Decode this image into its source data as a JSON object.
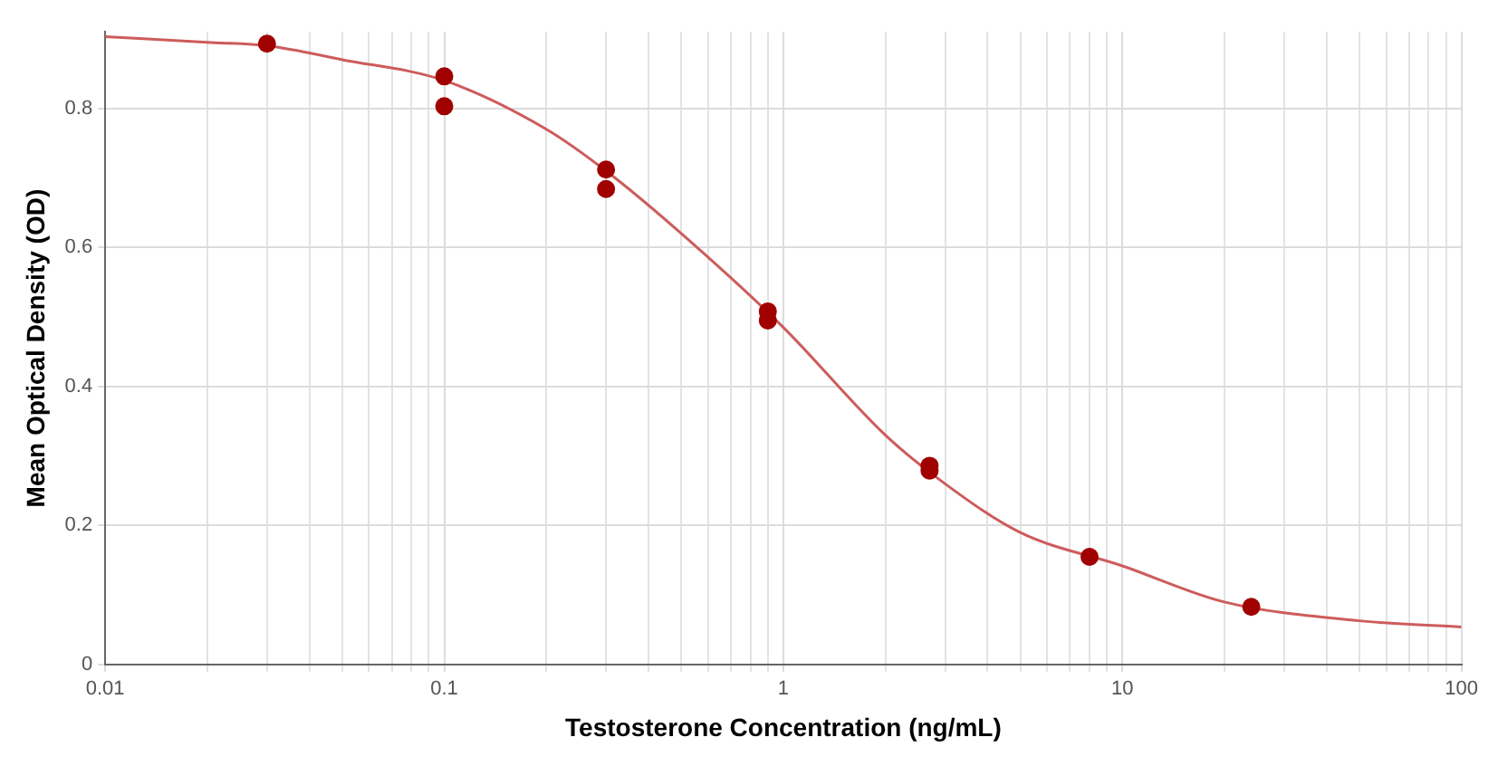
{
  "chart_data": {
    "type": "scatter",
    "xlabel": "Testosterone Concentration (ng/mL)",
    "ylabel": "Mean Optical Density (OD)",
    "log": "x",
    "grid": true,
    "legend": false,
    "xlim": [
      0.01,
      100
    ],
    "ylim": [
      0,
      0.91
    ],
    "xticks": [
      0.01,
      {
        "value": 0.02,
        "label": null
      },
      {
        "value": 0.03,
        "label": null
      },
      {
        "value": 0.04,
        "label": null
      },
      {
        "value": 0.05,
        "label": null
      },
      {
        "value": 0.06,
        "label": null
      },
      {
        "value": 0.07,
        "label": null
      },
      {
        "value": 0.08,
        "label": null
      },
      {
        "value": 0.09,
        "label": null
      },
      0.1,
      {
        "value": 0.2,
        "label": null
      },
      {
        "value": 0.3,
        "label": null
      },
      {
        "value": 0.4,
        "label": null
      },
      {
        "value": 0.5,
        "label": null
      },
      {
        "value": 0.6,
        "label": null
      },
      {
        "value": 0.7,
        "label": null
      },
      {
        "value": 0.8,
        "label": null
      },
      {
        "value": 0.9,
        "label": null
      },
      1,
      {
        "value": 2,
        "label": null
      },
      {
        "value": 3,
        "label": null
      },
      {
        "value": 4,
        "label": null
      },
      {
        "value": 5,
        "label": null
      },
      {
        "value": 6,
        "label": null
      },
      {
        "value": 7,
        "label": null
      },
      {
        "value": 8,
        "label": null
      },
      {
        "value": 9,
        "label": null
      },
      10,
      {
        "value": 20,
        "label": null
      },
      {
        "value": 30,
        "label": null
      },
      {
        "value": 40,
        "label": null
      },
      {
        "value": 50,
        "label": null
      },
      {
        "value": 60,
        "label": null
      },
      {
        "value": 70,
        "label": null
      },
      {
        "value": 80,
        "label": null
      },
      {
        "value": 90,
        "label": null
      },
      100
    ],
    "yticks": [
      0,
      0.2,
      0.4,
      0.6,
      0.8
    ],
    "series": [
      {
        "type": "line",
        "color": "#cd5c5c",
        "marker": "none",
        "x": [
          0.01,
          0.02,
          0.03,
          0.05,
          0.1,
          0.2,
          0.3,
          0.5,
          1,
          2,
          3,
          5,
          10,
          20,
          50,
          100
        ],
        "values": [
          0.903,
          0.895,
          0.89,
          0.87,
          0.84,
          0.77,
          0.71,
          0.62,
          0.485,
          0.33,
          0.26,
          0.19,
          0.142,
          0.09,
          0.063,
          0.054
        ]
      },
      {
        "type": "scatter",
        "color": "#a00000",
        "marker": "circle",
        "x": [
          0.03,
          0.1,
          0.1,
          0.3,
          0.3,
          0.9,
          0.9,
          2.7,
          2.7,
          8,
          24
        ],
        "values": [
          0.893,
          0.846,
          0.803,
          0.712,
          0.684,
          0.508,
          0.495,
          0.286,
          0.279,
          0.155,
          0.083
        ]
      }
    ]
  }
}
